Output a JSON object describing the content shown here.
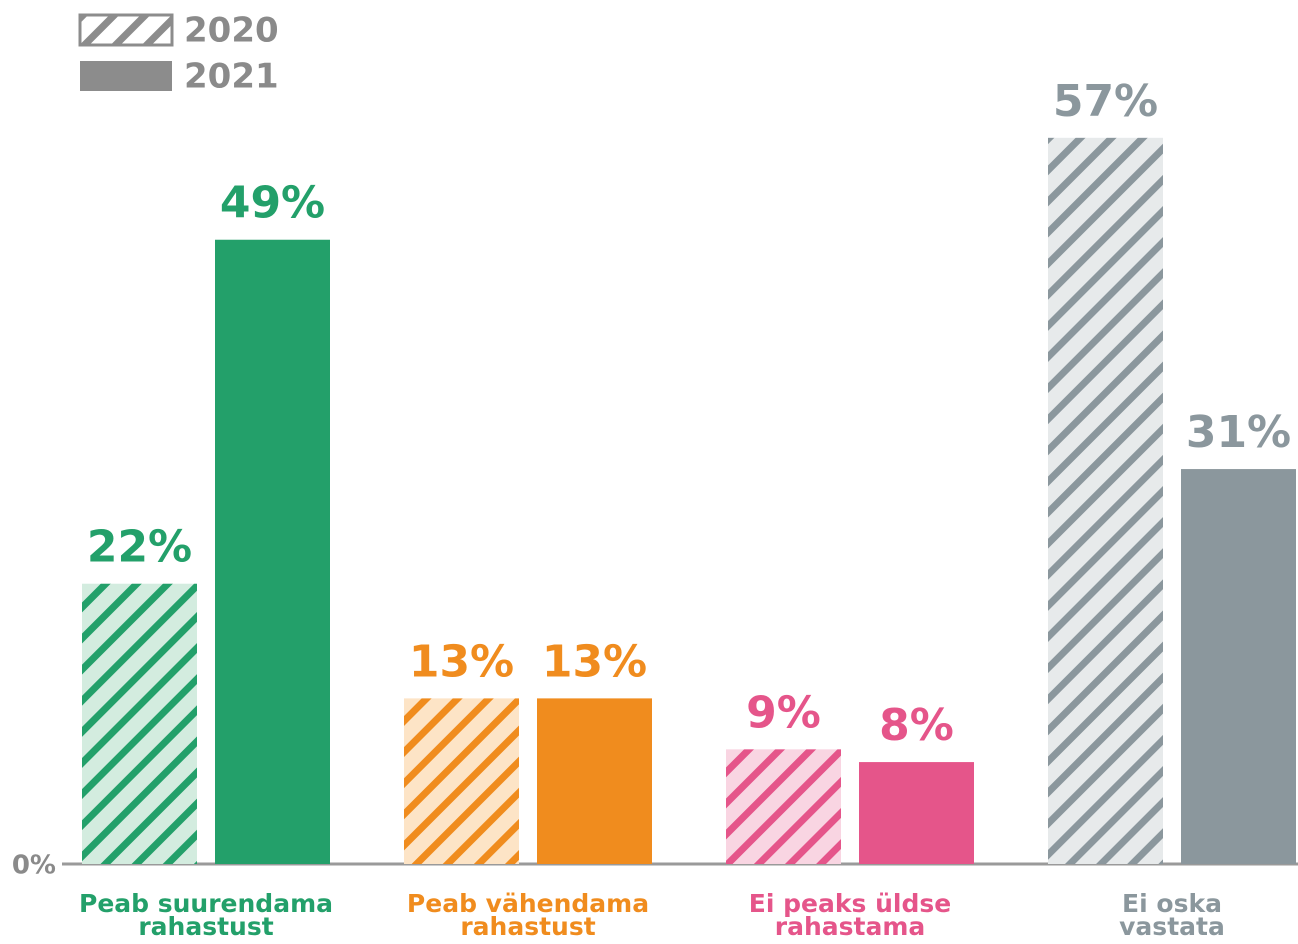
{
  "chart_data": {
    "type": "bar",
    "categories": [
      "Peab suurendama\nrahastust",
      "Peab vähendama\nrahastust",
      "Ei peaks üldse\nrahastama",
      "Ei oska\nvastata"
    ],
    "category_colors": [
      "#23a06a",
      "#f08c1e",
      "#e5558a",
      "#8b979d"
    ],
    "category_tints": [
      "#d3ecdf",
      "#fde4c6",
      "#f9d5e2",
      "#e7eaeb"
    ],
    "series": [
      {
        "name": "2020",
        "color": "#8c8c8c",
        "hatched": true,
        "values": [
          22,
          13,
          9,
          57
        ],
        "value_labels": [
          "22%",
          "13%",
          "9%",
          "57%"
        ]
      },
      {
        "name": "2021",
        "color": "#8c8c8c",
        "hatched": false,
        "values": [
          49,
          13,
          8,
          31
        ],
        "value_labels": [
          "49%",
          "13%",
          "8%",
          "31%"
        ]
      }
    ],
    "ylim": [
      0,
      60
    ],
    "yticks": [
      {
        "value": 0,
        "label": "0%"
      }
    ],
    "grid": false,
    "legend": "top-left"
  }
}
